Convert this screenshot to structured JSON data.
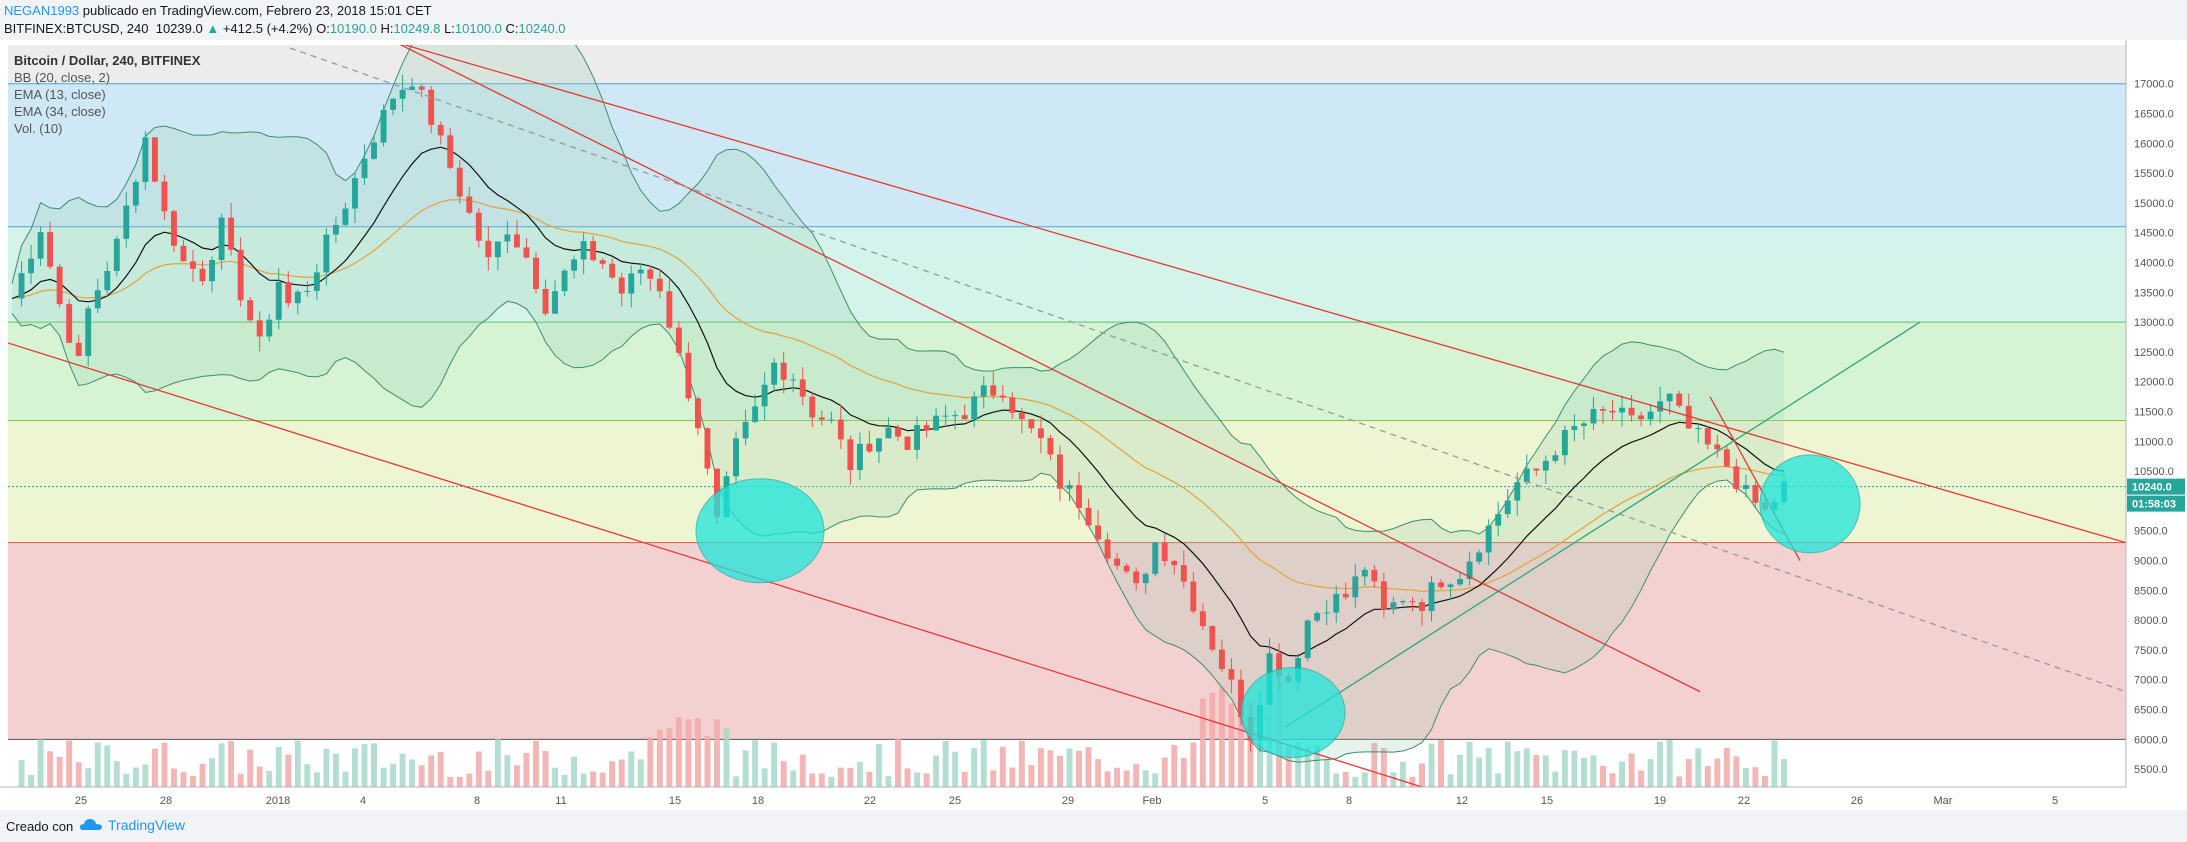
{
  "header": {
    "user": "NEGAN1993",
    "published": "publicado en TradingView.com, Febrero 23, 2018 15:01 CET",
    "symbol": "BITFINEX:BTCUSD, 240",
    "last": "10239.0",
    "change": "+412.5 (+4.2%)",
    "o_label": "O:",
    "o_val": "10190.0",
    "h_label": "H:",
    "h_val": "10249.8",
    "l_label": "L:",
    "l_val": "10100.0",
    "c_label": "C:",
    "c_val": "10240.0"
  },
  "legend": {
    "title": "Bitcoin / Dollar, 240, BITFINEX",
    "bb": "BB (20, close, 2)",
    "ema13": "EMA (13, close)",
    "ema34": "EMA (34, close)",
    "vol": "Vol. (10)"
  },
  "footer": {
    "created": "Creado con",
    "brand": "TradingView"
  },
  "colors": {
    "up": "#26a69a",
    "down": "#ef5350",
    "trend": "#e53935",
    "band_blue": "#cfe8f5",
    "band_mint": "#d4f3ea",
    "band_green": "#d6f4d4",
    "band_yellow": "#eef5d2",
    "band_red": "#f4d1d1",
    "highlight": "#1ee6dc"
  },
  "chart_data": {
    "type": "candlestick",
    "yticks": [
      "17000.0",
      "16500.0",
      "16000.0",
      "15500.0",
      "15000.0",
      "14500.0",
      "14000.0",
      "13500.0",
      "13000.0",
      "12500.0",
      "12000.0",
      "11500.0",
      "11000.0",
      "10500.0",
      "10000.0",
      "9500.0",
      "9000.0",
      "8500.0",
      "8000.0",
      "7500.0",
      "7000.0",
      "6500.0",
      "6000.0",
      "5500.0"
    ],
    "yvalues": [
      17000,
      16500,
      16000,
      15500,
      15000,
      14500,
      14000,
      13500,
      13000,
      12500,
      12000,
      11500,
      11000,
      10500,
      10000,
      9500,
      9000,
      8500,
      8000,
      7500,
      7000,
      6500,
      6000,
      5500
    ],
    "ylim": [
      5200,
      17650
    ],
    "xticks": [
      "25",
      "28",
      "2018",
      "4",
      "8",
      "11",
      "15",
      "18",
      "22",
      "25",
      "29",
      "Feb",
      "5",
      "8",
      "12",
      "15",
      "19",
      "22",
      "26",
      "Mar",
      "5"
    ],
    "last_price_tag": "10240.0",
    "countdown_tag": "01:58:03",
    "horizontal_levels": [
      17000,
      14600,
      13000,
      11350,
      10240,
      9300,
      6000
    ],
    "price_path": [
      [
        0,
        13400
      ],
      [
        3,
        14600
      ],
      [
        5,
        13300
      ],
      [
        7,
        12300
      ],
      [
        8,
        13200
      ],
      [
        11,
        14300
      ],
      [
        14,
        16100
      ],
      [
        16,
        14800
      ],
      [
        18,
        14000
      ],
      [
        20,
        13800
      ],
      [
        22,
        14600
      ],
      [
        24,
        13500
      ],
      [
        26,
        12600
      ],
      [
        28,
        13700
      ],
      [
        29,
        13300
      ],
      [
        31,
        13600
      ],
      [
        33,
        14300
      ],
      [
        35,
        15000
      ],
      [
        37,
        15800
      ],
      [
        40,
        16800
      ],
      [
        42,
        17100
      ],
      [
        44,
        16400
      ],
      [
        46,
        15600
      ],
      [
        48,
        14800
      ],
      [
        50,
        14000
      ],
      [
        52,
        14600
      ],
      [
        54,
        14100
      ],
      [
        56,
        13300
      ],
      [
        58,
        13800
      ],
      [
        60,
        14200
      ],
      [
        62,
        14000
      ],
      [
        64,
        13500
      ],
      [
        66,
        13900
      ],
      [
        68,
        13600
      ],
      [
        70,
        12400
      ],
      [
        72,
        11300
      ],
      [
        74,
        9600
      ],
      [
        76,
        10900
      ],
      [
        78,
        11500
      ],
      [
        80,
        12300
      ],
      [
        82,
        12100
      ],
      [
        84,
        11500
      ],
      [
        86,
        11300
      ],
      [
        88,
        10600
      ],
      [
        90,
        11000
      ],
      [
        92,
        11200
      ],
      [
        94,
        11000
      ],
      [
        96,
        11200
      ],
      [
        98,
        11400
      ],
      [
        100,
        11500
      ],
      [
        102,
        11800
      ],
      [
        104,
        11900
      ],
      [
        106,
        11300
      ],
      [
        108,
        11000
      ],
      [
        110,
        10300
      ],
      [
        112,
        10000
      ],
      [
        114,
        9500
      ],
      [
        116,
        8900
      ],
      [
        118,
        8500
      ],
      [
        120,
        9300
      ],
      [
        122,
        9000
      ],
      [
        124,
        8300
      ],
      [
        126,
        7600
      ],
      [
        128,
        6900
      ],
      [
        130,
        6100
      ],
      [
        132,
        7400
      ],
      [
        134,
        7000
      ],
      [
        136,
        8000
      ],
      [
        138,
        8300
      ],
      [
        140,
        8400
      ],
      [
        142,
        8900
      ],
      [
        144,
        8100
      ],
      [
        146,
        8400
      ],
      [
        148,
        8300
      ],
      [
        150,
        8700
      ],
      [
        152,
        8800
      ],
      [
        154,
        9300
      ],
      [
        156,
        9800
      ],
      [
        158,
        10300
      ],
      [
        160,
        10500
      ],
      [
        162,
        10900
      ],
      [
        164,
        11200
      ],
      [
        166,
        11400
      ],
      [
        168,
        11500
      ],
      [
        170,
        11300
      ],
      [
        172,
        11500
      ],
      [
        174,
        11700
      ],
      [
        176,
        11200
      ],
      [
        178,
        10900
      ],
      [
        180,
        10600
      ],
      [
        182,
        10100
      ],
      [
        184,
        9800
      ],
      [
        186,
        10240
      ]
    ]
  }
}
